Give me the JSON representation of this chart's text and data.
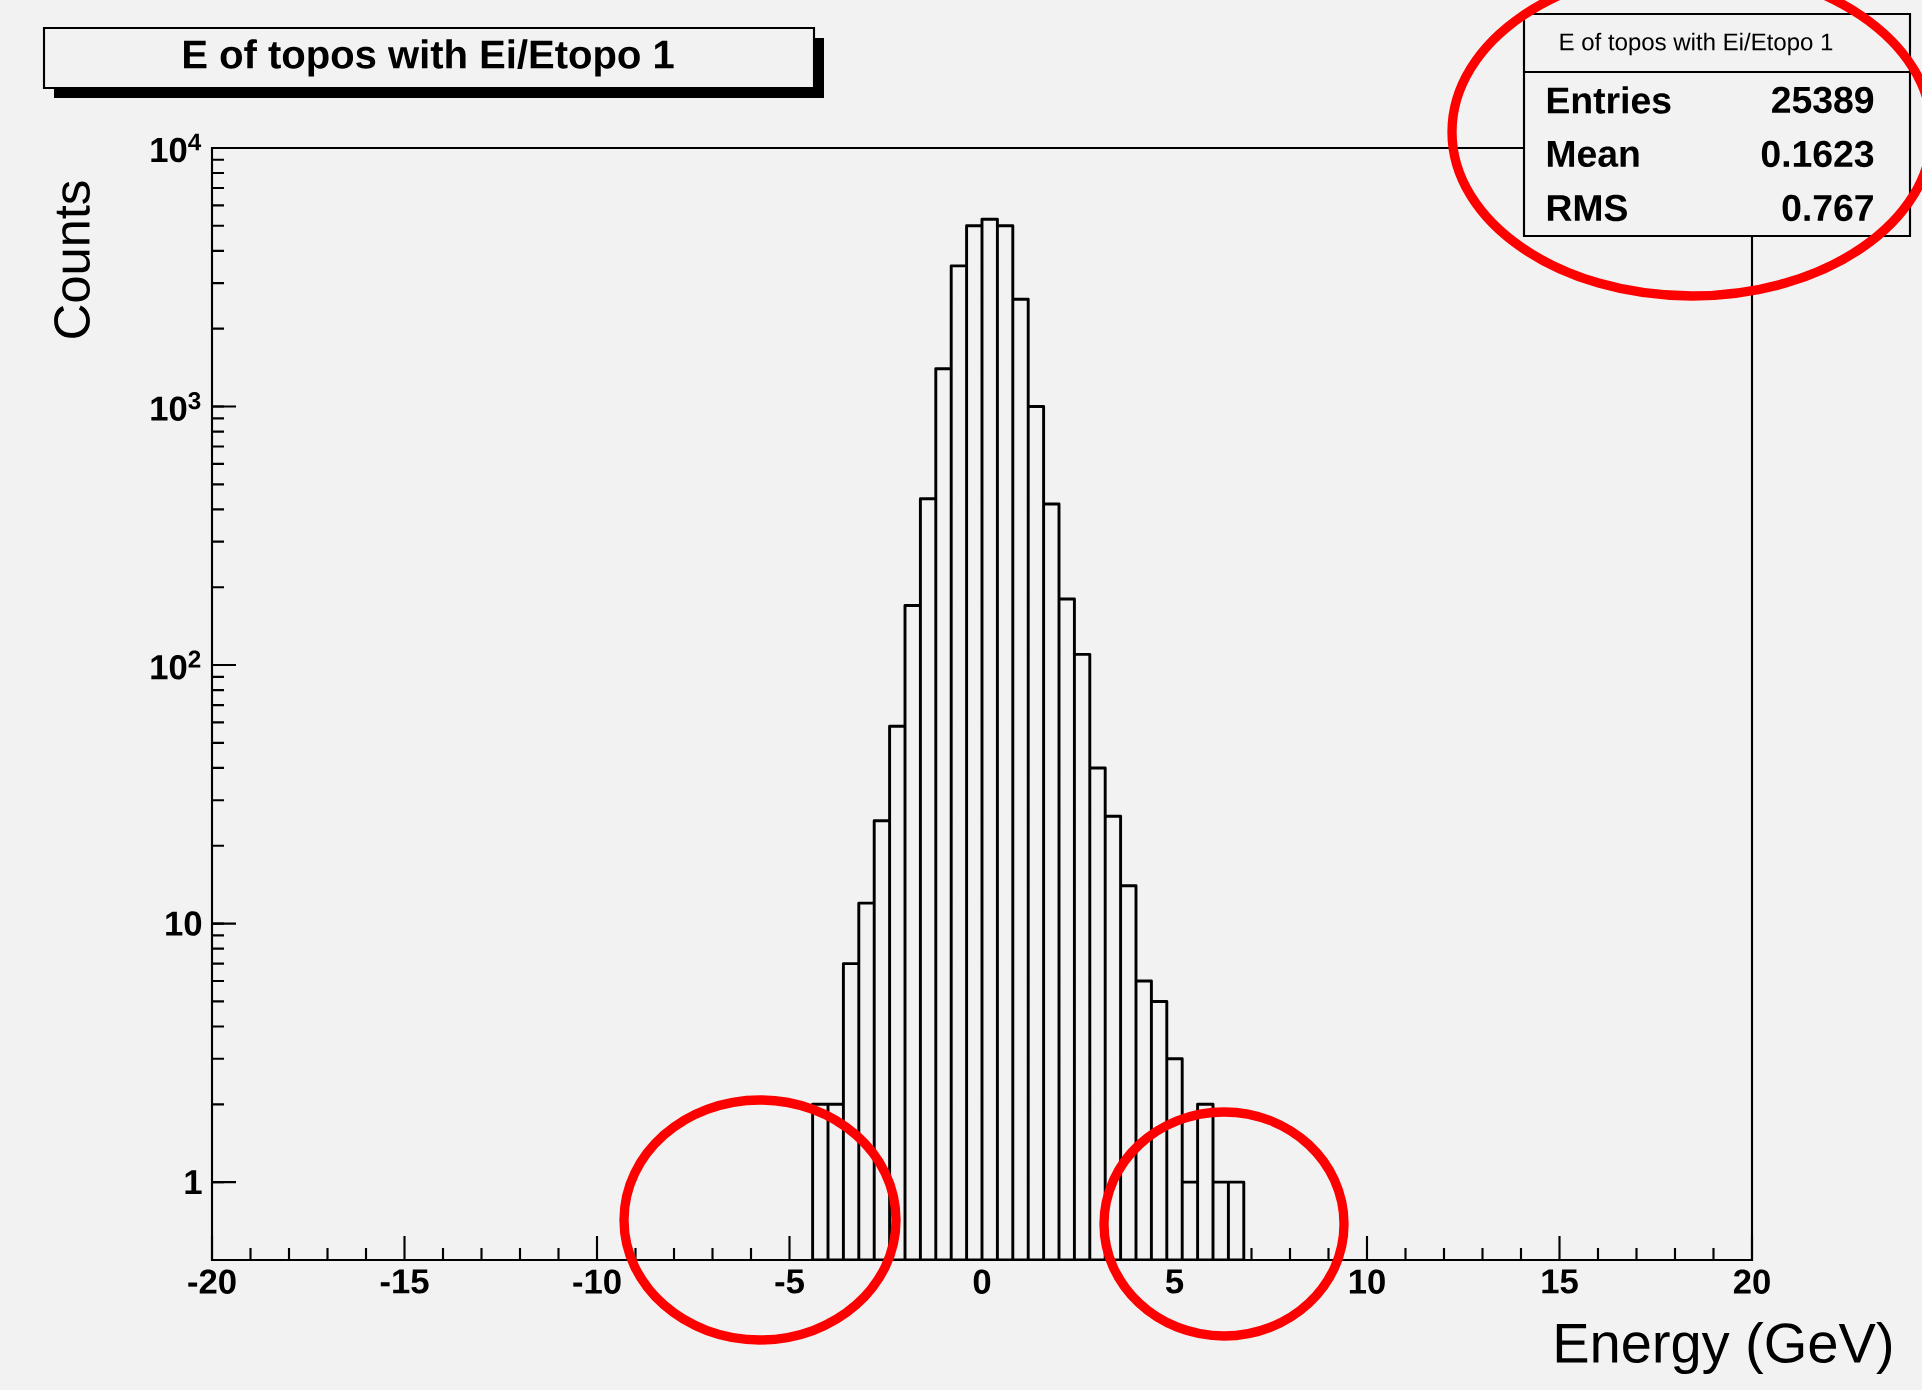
{
  "chart_data": {
    "type": "histogram",
    "title": "E of topos with Ei/Etopo 1",
    "xlabel": "Energy (GeV)",
    "ylabel": "Counts",
    "bins": [
      -4.4,
      -4.0,
      -3.6,
      -3.2,
      -2.8,
      -2.4,
      -2.0,
      -1.6,
      -1.2,
      -0.8,
      -0.4,
      0,
      0.4,
      0.8,
      1.2,
      1.6,
      2.0,
      2.4,
      2.8,
      3.2,
      3.6,
      4.0,
      4.4,
      4.8,
      5.2,
      5.6,
      6.0,
      6.4,
      6.8
    ],
    "values": [
      2,
      2,
      7,
      12,
      25,
      58,
      170,
      440,
      1400,
      3500,
      5000,
      5300,
      5000,
      2600,
      1000,
      420,
      180,
      110,
      40,
      26,
      14,
      6,
      5,
      3,
      1,
      2,
      1,
      1
    ],
    "color": "#f2f2f2",
    "log": true,
    "xlim": [
      -20,
      20
    ],
    "xticks": [
      -20,
      -15,
      -10,
      -5,
      0,
      5,
      10,
      15,
      20
    ],
    "ylim": [
      0.5,
      10000
    ],
    "yticks": [
      1,
      10,
      {
        "value": 100,
        "label": "10$^{2}$"
      },
      {
        "value": 1000,
        "label": "10$^{3}$"
      },
      {
        "value": 10000,
        "label": "10$^{4}$"
      }
    ],
    "annotations": [
      "E of topos with Ei/Etopo 1",
      "Entries",
      "25389",
      "Mean",
      "0.1623",
      "RMS",
      "0.767"
    ]
  }
}
